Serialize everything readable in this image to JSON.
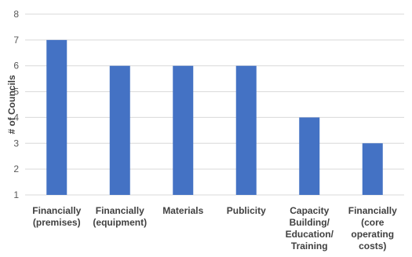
{
  "chart_data": {
    "type": "bar",
    "title": "",
    "xlabel": "",
    "ylabel": "# of Councils",
    "ylim": [
      1,
      8
    ],
    "yticks": [
      1,
      2,
      3,
      4,
      5,
      6,
      7,
      8
    ],
    "grid": true,
    "bar_color": "#4472c4",
    "categories": [
      [
        "Financially",
        "(premises)"
      ],
      [
        "Financially",
        "(equipment)"
      ],
      [
        "Materials"
      ],
      [
        "Publicity"
      ],
      [
        "Capacity",
        "Building/",
        "Education/",
        "Training"
      ],
      [
        "Financially",
        "(core",
        "operating",
        "costs)"
      ]
    ],
    "values": [
      7,
      6,
      6,
      6,
      4,
      3
    ]
  }
}
